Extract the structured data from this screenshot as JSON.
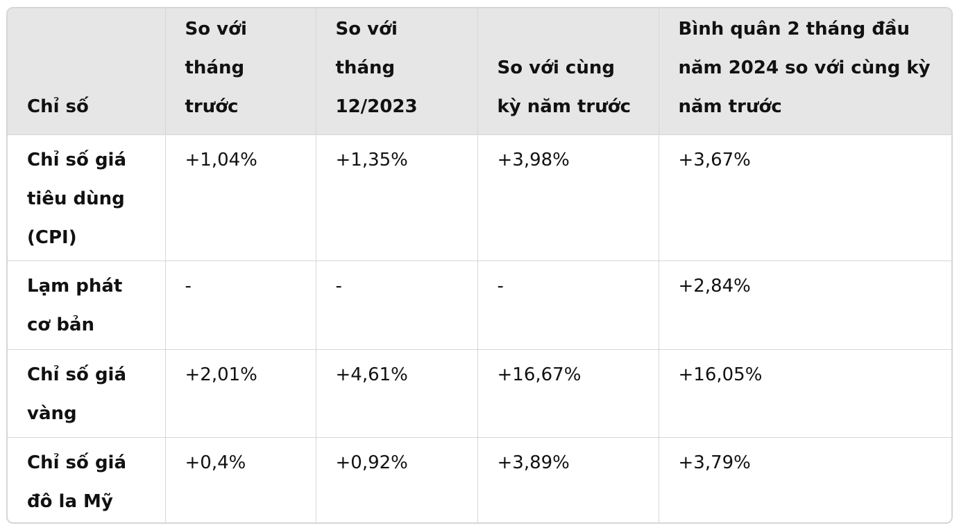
{
  "table": {
    "headers": [
      "Chỉ số",
      "So với tháng trước",
      "So với tháng 12/2023",
      "So với cùng kỳ năm trước",
      "Bình quân 2 tháng đầu năm 2024 so với cùng kỳ năm trước"
    ],
    "rows": [
      {
        "label": "Chỉ số giá tiêu dùng (CPI)",
        "values": [
          "+1,04%",
          "+1,35%",
          "+3,98%",
          "+3,67%"
        ]
      },
      {
        "label": "Lạm phát cơ bản",
        "values": [
          "-",
          "-",
          "-",
          "+2,84%"
        ]
      },
      {
        "label": "Chỉ số giá vàng",
        "values": [
          "+2,01%",
          "+4,61%",
          "+16,67%",
          "+16,05%"
        ]
      },
      {
        "label": "Chỉ số giá đô la Mỹ",
        "values": [
          "+0,4%",
          "+0,92%",
          "+3,89%",
          "+3,79%"
        ]
      }
    ]
  }
}
